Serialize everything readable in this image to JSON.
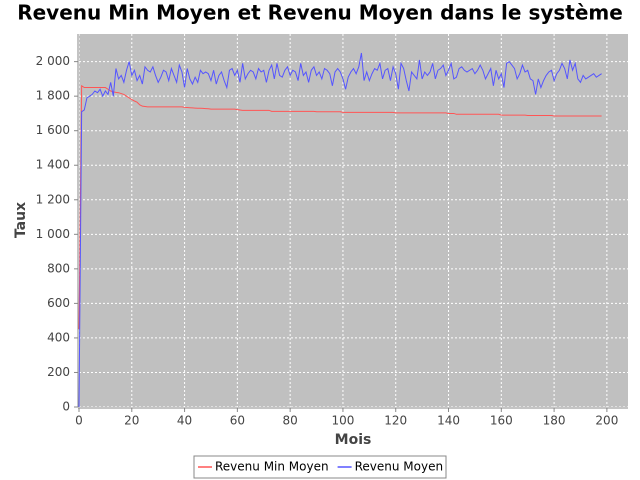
{
  "chart_data": {
    "type": "line",
    "title": "Revenu Min Moyen et Revenu Moyen dans le système",
    "x_label": "Mois",
    "y_label": "Taux",
    "xlim": [
      0,
      208
    ],
    "ylim": [
      0,
      2160
    ],
    "xticks": [
      0,
      20,
      40,
      60,
      80,
      100,
      120,
      140,
      160,
      180,
      200
    ],
    "yticks": [
      0,
      200,
      400,
      600,
      800,
      {
        "value": 1000,
        "label": "1 000"
      },
      {
        "value": 1200,
        "label": "1 200"
      },
      {
        "value": 1400,
        "label": "1 400"
      },
      {
        "value": 1600,
        "label": "1 600"
      },
      {
        "value": 1800,
        "label": "1 800"
      },
      {
        "value": 2000,
        "label": "2 000"
      }
    ],
    "grid": true,
    "legend": "bottom",
    "x": [
      0,
      1,
      2,
      3,
      4,
      5,
      6,
      7,
      8,
      9,
      10,
      11,
      12,
      13,
      14,
      15,
      16,
      17,
      18,
      19,
      20,
      21,
      22,
      23,
      24,
      25,
      26,
      27,
      28,
      29,
      30,
      31,
      32,
      33,
      34,
      35,
      36,
      37,
      38,
      39,
      40,
      41,
      42,
      43,
      44,
      45,
      46,
      47,
      48,
      49,
      50,
      51,
      52,
      53,
      54,
      55,
      56,
      57,
      58,
      59,
      60,
      61,
      62,
      63,
      64,
      65,
      66,
      67,
      68,
      69,
      70,
      71,
      72,
      73,
      74,
      75,
      76,
      77,
      78,
      79,
      80,
      81,
      82,
      83,
      84,
      85,
      86,
      87,
      88,
      89,
      90,
      91,
      92,
      93,
      94,
      95,
      96,
      97,
      98,
      99,
      100,
      101,
      102,
      103,
      104,
      105,
      106,
      107,
      108,
      109,
      110,
      111,
      112,
      113,
      114,
      115,
      116,
      117,
      118,
      119,
      120,
      121,
      122,
      123,
      124,
      125,
      126,
      127,
      128,
      129,
      130,
      131,
      132,
      133,
      134,
      135,
      136,
      137,
      138,
      139,
      140,
      141,
      142,
      143,
      144,
      145,
      146,
      147,
      148,
      149,
      150,
      151,
      152,
      153,
      154,
      155,
      156,
      157,
      158,
      159,
      160,
      161,
      162,
      163,
      164,
      165,
      166,
      167,
      168,
      169,
      170,
      171,
      172,
      173,
      174,
      175,
      176,
      177,
      178,
      179,
      180,
      181,
      182,
      183,
      184,
      185,
      186,
      187,
      188,
      189,
      190,
      191,
      192,
      193,
      194,
      195,
      196,
      197,
      198
    ],
    "series": [
      {
        "name": "Revenu Min Moyen",
        "color": "#ff5555",
        "values": [
          450,
          1860,
          1850,
          1850,
          1850,
          1850,
          1850,
          1850,
          1850,
          1850,
          1850,
          1840,
          1830,
          1825,
          1822,
          1820,
          1815,
          1810,
          1800,
          1790,
          1780,
          1772,
          1765,
          1750,
          1742,
          1740,
          1738,
          1738,
          1738,
          1738,
          1738,
          1738,
          1738,
          1738,
          1738,
          1738,
          1738,
          1738,
          1738,
          1738,
          1735,
          1734,
          1733,
          1732,
          1731,
          1730,
          1730,
          1729,
          1728,
          1727,
          1725,
          1725,
          1725,
          1725,
          1725,
          1725,
          1725,
          1725,
          1725,
          1725,
          1722,
          1720,
          1718,
          1718,
          1718,
          1718,
          1718,
          1718,
          1718,
          1718,
          1718,
          1718,
          1718,
          1712,
          1712,
          1712,
          1712,
          1712,
          1712,
          1712,
          1712,
          1712,
          1712,
          1712,
          1712,
          1712,
          1712,
          1712,
          1712,
          1712,
          1710,
          1710,
          1710,
          1710,
          1710,
          1710,
          1710,
          1710,
          1710,
          1710,
          1706,
          1706,
          1706,
          1706,
          1706,
          1706,
          1706,
          1706,
          1706,
          1706,
          1706,
          1706,
          1706,
          1706,
          1706,
          1706,
          1706,
          1706,
          1706,
          1706,
          1703,
          1703,
          1703,
          1703,
          1703,
          1703,
          1703,
          1703,
          1703,
          1703,
          1703,
          1703,
          1703,
          1703,
          1703,
          1703,
          1703,
          1703,
          1703,
          1703,
          1700,
          1700,
          1700,
          1695,
          1695,
          1695,
          1695,
          1695,
          1695,
          1695,
          1695,
          1695,
          1695,
          1695,
          1695,
          1695,
          1695,
          1695,
          1695,
          1695,
          1690,
          1690,
          1690,
          1690,
          1690,
          1690,
          1690,
          1690,
          1690,
          1690,
          1688,
          1688,
          1688,
          1688,
          1688,
          1688,
          1688,
          1688,
          1688,
          1688,
          1685,
          1685,
          1685,
          1685,
          1685,
          1685,
          1685,
          1685,
          1685,
          1685,
          1685,
          1685,
          1685,
          1685,
          1685,
          1685,
          1685,
          1685,
          1685
        ]
      },
      {
        "name": "Revenu Moyen",
        "color": "#5555ff",
        "values": [
          0,
          1710,
          1720,
          1790,
          1800,
          1810,
          1830,
          1820,
          1840,
          1800,
          1830,
          1810,
          1880,
          1800,
          1960,
          1900,
          1920,
          1880,
          1950,
          2000,
          1920,
          1950,
          1890,
          1920,
          1870,
          1970,
          1950,
          1940,
          1970,
          1920,
          1880,
          1910,
          1950,
          1940,
          1890,
          1960,
          1920,
          1880,
          1980,
          1940,
          1850,
          1960,
          1900,
          1870,
          1910,
          1880,
          1950,
          1930,
          1940,
          1930,
          1890,
          1950,
          1870,
          1920,
          1940,
          1890,
          1850,
          1950,
          1960,
          1920,
          1950,
          1880,
          1990,
          1900,
          1930,
          1950,
          1940,
          1900,
          1960,
          1940,
          1950,
          1880,
          1950,
          1980,
          1900,
          1990,
          1920,
          1910,
          1950,
          1970,
          1920,
          1950,
          1940,
          1890,
          1990,
          1920,
          1940,
          1880,
          1950,
          1970,
          1920,
          1940,
          1900,
          1960,
          1950,
          1930,
          1860,
          1940,
          1960,
          1940,
          1900,
          1840,
          1910,
          1940,
          1960,
          1930,
          1970,
          2050,
          1890,
          1940,
          1890,
          1930,
          1960,
          1950,
          1990,
          1900,
          1950,
          1960,
          1890,
          1970,
          1930,
          1840,
          1990,
          1960,
          1890,
          1830,
          1940,
          1920,
          1900,
          2010,
          1900,
          1940,
          1920,
          1940,
          1990,
          1900,
          1950,
          1960,
          1980,
          1920,
          1950,
          1990,
          1900,
          1910,
          1960,
          1970,
          1950,
          1940,
          1950,
          1960,
          1930,
          1950,
          1980,
          1950,
          1900,
          1930,
          1960,
          1860,
          1950,
          1900,
          1930,
          1850,
          1990,
          2000,
          1980,
          1960,
          1900,
          1930,
          1980,
          1940,
          1950,
          1900,
          1890,
          1810,
          1900,
          1850,
          1890,
          1920,
          1940,
          1950,
          1890,
          1930,
          1950,
          1990,
          1960,
          1900,
          2010,
          1950,
          1990,
          1900,
          1880,
          1920,
          1900,
          1910,
          1920,
          1930,
          1910,
          1920,
          1930
        ]
      }
    ]
  }
}
